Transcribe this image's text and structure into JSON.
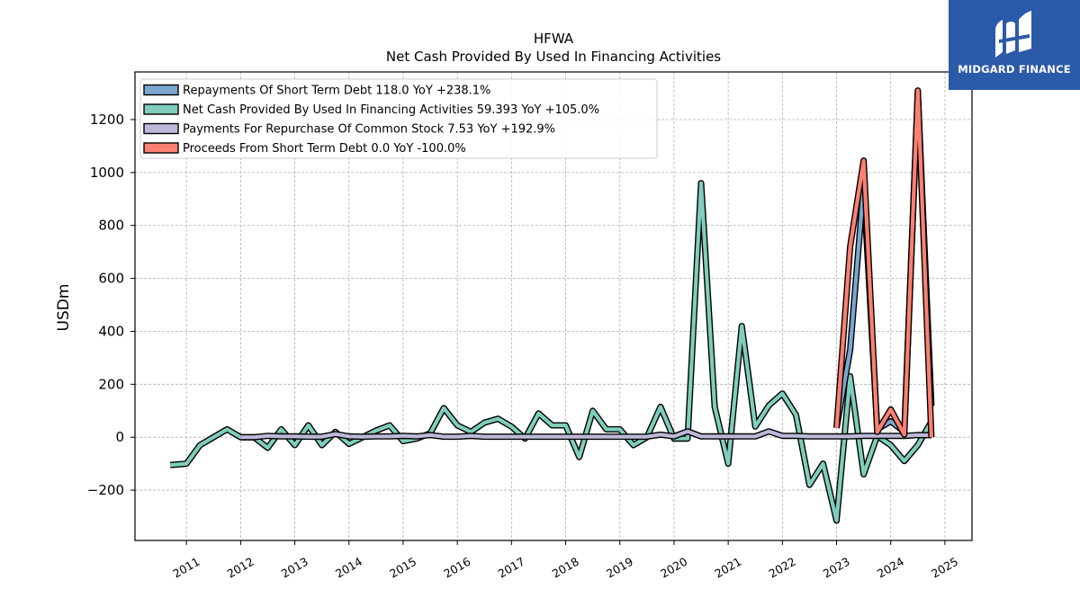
{
  "chart_data": {
    "type": "line",
    "title": "HFWA",
    "subtitle": "Net Cash Provided By Used In Financing Activities",
    "ylabel": "USDm",
    "xlabel": "",
    "ylim": [
      -390,
      1380
    ],
    "xlim": [
      2010.05,
      2025.5
    ],
    "yticks": [
      -200,
      0,
      200,
      400,
      600,
      800,
      1000,
      1200
    ],
    "yticklabels": [
      "−200",
      "0",
      "200",
      "400",
      "600",
      "800",
      "1000",
      "1200"
    ],
    "xticks": [
      2011,
      2012,
      2013,
      2014,
      2015,
      2016,
      2017,
      2018,
      2019,
      2020,
      2021,
      2022,
      2023,
      2024,
      2025
    ],
    "xticklabels": [
      "2011",
      "2012",
      "2013",
      "2014",
      "2015",
      "2016",
      "2017",
      "2018",
      "2019",
      "2020",
      "2021",
      "2022",
      "2023",
      "2024",
      "2025"
    ],
    "grid": true,
    "legend_position": "top-left",
    "series": [
      {
        "name": "Net Cash Provided By Used In Financing Activities",
        "legend": "Net Cash Provided By Used In Financing Activities  59.393 YoY +105.0%",
        "color": "#7fcdbb",
        "x": [
          2010.7,
          2011.0,
          2011.25,
          2011.5,
          2011.75,
          2012.0,
          2012.25,
          2012.5,
          2012.75,
          2013.0,
          2013.25,
          2013.5,
          2013.75,
          2014.0,
          2014.25,
          2014.5,
          2014.75,
          2015.0,
          2015.25,
          2015.5,
          2015.75,
          2016.0,
          2016.25,
          2016.5,
          2016.75,
          2017.0,
          2017.25,
          2017.5,
          2017.75,
          2018.0,
          2018.25,
          2018.5,
          2018.75,
          2019.0,
          2019.25,
          2019.5,
          2019.75,
          2020.0,
          2020.25,
          2020.5,
          2020.75,
          2021.0,
          2021.25,
          2021.5,
          2021.75,
          2022.0,
          2022.25,
          2022.5,
          2022.75,
          2023.0,
          2023.25,
          2023.5,
          2023.75,
          2024.0,
          2024.25,
          2024.5,
          2024.75
        ],
        "values": [
          -105,
          -100,
          -30,
          0,
          30,
          0,
          0,
          -40,
          30,
          -30,
          45,
          -30,
          20,
          -25,
          0,
          25,
          45,
          -15,
          -5,
          15,
          110,
          45,
          20,
          55,
          70,
          40,
          -5,
          90,
          45,
          45,
          -75,
          100,
          30,
          30,
          -30,
          0,
          115,
          -5,
          -5,
          960,
          115,
          -100,
          420,
          40,
          120,
          165,
          85,
          -180,
          -100,
          -315,
          230,
          -140,
          5,
          -30,
          -90,
          -30,
          59.393
        ]
      },
      {
        "name": "Repayments Of Short Term Debt",
        "legend": "Repayments Of Short Term Debt  118.0 YoY +238.1%",
        "color": "#7ba7d0",
        "x": [
          2023.0,
          2023.25,
          2023.5,
          2023.75,
          2024.0,
          2024.25,
          2024.5,
          2024.75
        ],
        "values": [
          35,
          330,
          950,
          30,
          60,
          20,
          1300,
          118.0
        ]
      },
      {
        "name": "Payments For Repurchase Of Common Stock",
        "legend": "Payments For Repurchase Of Common Stock  7.53 YoY +192.9%",
        "color": "#bcb8d9",
        "x": [
          2012.0,
          2012.25,
          2012.5,
          2012.75,
          2013.0,
          2013.25,
          2013.5,
          2013.75,
          2014.0,
          2014.25,
          2014.5,
          2014.75,
          2015.0,
          2015.25,
          2015.5,
          2015.75,
          2016.0,
          2016.25,
          2016.5,
          2016.75,
          2017.0,
          2017.25,
          2017.5,
          2017.75,
          2018.0,
          2018.25,
          2018.5,
          2018.75,
          2019.0,
          2019.25,
          2019.5,
          2019.75,
          2020.0,
          2020.25,
          2020.5,
          2020.75,
          2021.0,
          2021.25,
          2021.5,
          2021.75,
          2022.0,
          2022.25,
          2022.5,
          2022.75,
          2023.0,
          2023.25,
          2023.5,
          2023.75,
          2024.0,
          2024.25,
          2024.5,
          2024.75
        ],
        "values": [
          0,
          0,
          5,
          3,
          3,
          2,
          2,
          12,
          3,
          2,
          3,
          3,
          5,
          3,
          8,
          2,
          2,
          5,
          2,
          2,
          2,
          2,
          2,
          2,
          2,
          2,
          2,
          2,
          2,
          2,
          2,
          10,
          3,
          22,
          3,
          3,
          3,
          3,
          3,
          22,
          5,
          5,
          3,
          3,
          3,
          3,
          5,
          5,
          5,
          5,
          8,
          7.53
        ]
      },
      {
        "name": "Proceeds From Short Term Debt",
        "legend": "Proceeds From Short Term Debt  0.0 YoY -100.0%",
        "color": "#fb8072",
        "x": [
          2023.0,
          2023.25,
          2023.5,
          2023.75,
          2024.0,
          2024.25,
          2024.5,
          2024.75
        ],
        "values": [
          35,
          720,
          1045,
          20,
          105,
          10,
          1310,
          0.0
        ]
      }
    ]
  },
  "logo": {
    "text": "MIDGARD FINANCE"
  }
}
